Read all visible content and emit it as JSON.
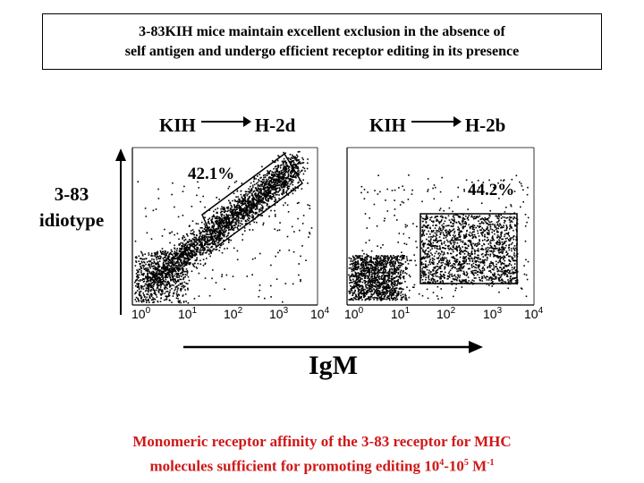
{
  "title": {
    "line1": "3-83KIH mice maintain excellent exclusion in the absence of",
    "line2": "self antigen and undergo efficient receptor editing in its presence"
  },
  "panels": [
    {
      "from_label": "KIH",
      "to_label": "H-2d",
      "gate_percent": "42.1%",
      "gate_shape": "diagonal"
    },
    {
      "from_label": "KIH",
      "to_label": "H-2b",
      "gate_percent": "44.2%",
      "gate_shape": "rectangle"
    }
  ],
  "y_axis": {
    "line1": "3-83",
    "line2": "idiotype"
  },
  "x_axis": {
    "label": "IgM",
    "ticks": [
      "10^0",
      "10^1",
      "10^2",
      "10^3",
      "10^4"
    ]
  },
  "footer": {
    "line1": "Monomeric receptor affinity of the 3-83 receptor for MHC",
    "line2_prefix": "molecules sufficient for promoting editing 10",
    "exp1": "4",
    "dash": "-10",
    "exp2": "5",
    "unit": " M",
    "exp3": "-1"
  },
  "colors": {
    "footer": "#d01818",
    "dots": "#000000"
  }
}
